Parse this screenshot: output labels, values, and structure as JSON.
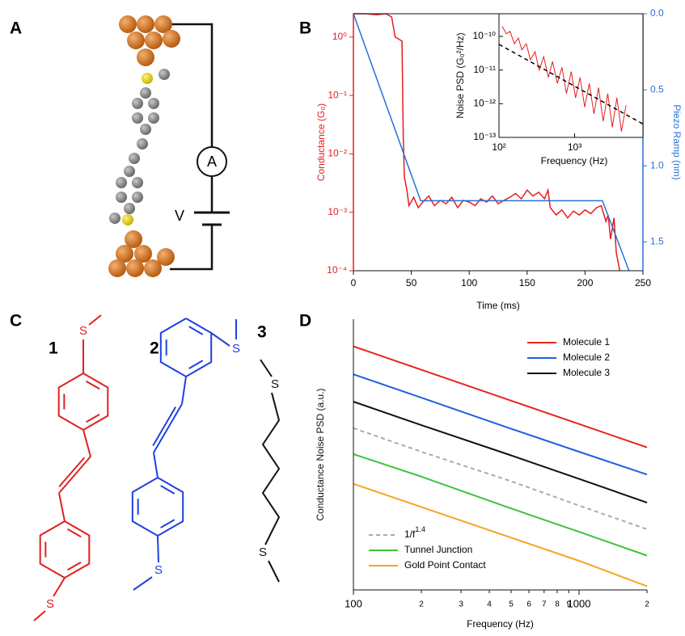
{
  "panel_labels": [
    "A",
    "B",
    "C",
    "D"
  ],
  "panel_a": {
    "ammeter_label": "A",
    "voltage_label": "V"
  },
  "panel_c": {
    "compound_labels": [
      "1",
      "2",
      "3"
    ],
    "sulfur_labels": [
      "S",
      "S",
      "S",
      "S",
      "S",
      "S"
    ]
  },
  "chart_data": [
    {
      "type": "line",
      "xlabel": "Time (ms)",
      "ylabel": "Conductance (G₀)",
      "y2label": "Piezo Ramp (nm)",
      "xlim": [
        0,
        250
      ],
      "xticks": [
        0,
        50,
        100,
        150,
        200,
        250
      ],
      "yscale": "log",
      "ylim": [
        0.0001,
        2.5
      ],
      "yticks": [
        {
          "value": 0.0001,
          "label": "10⁻⁴"
        },
        {
          "value": 0.001,
          "label": "10⁻³"
        },
        {
          "value": 0.01,
          "label": "10⁻²"
        },
        {
          "value": 0.1,
          "label": "10⁻¹"
        },
        {
          "value": 1,
          "label": "10⁰"
        }
      ],
      "y2lim": [
        0,
        1.69
      ],
      "y2_inverted": true,
      "y2ticks": [
        {
          "value": 0,
          "label": "0.0"
        },
        0.5,
        {
          "value": 1,
          "label": "1.0"
        },
        1.5
      ],
      "ycolor": "#e41e1e",
      "y2color": "#2a6fd8",
      "series": [
        {
          "color": "#e41e1e",
          "x": [
            0,
            10,
            20,
            28,
            33,
            36,
            40,
            42,
            43,
            44,
            46,
            48,
            52,
            56,
            60,
            65,
            70,
            75,
            80,
            85,
            90,
            95,
            100,
            105,
            110,
            115,
            120,
            125,
            130,
            135,
            140,
            145,
            150,
            155,
            160,
            165,
            168,
            170,
            175,
            180,
            185,
            190,
            195,
            200,
            205,
            210,
            214,
            218,
            220,
            222,
            225,
            227,
            230
          ],
          "values": [
            2.5,
            2.5,
            2.4,
            2.5,
            2.2,
            1.0,
            0.9,
            0.85,
            0.02,
            0.004,
            0.0025,
            0.0013,
            0.0018,
            0.0012,
            0.0015,
            0.0019,
            0.0013,
            0.0016,
            0.0014,
            0.0018,
            0.0012,
            0.0016,
            0.0015,
            0.0013,
            0.0017,
            0.0015,
            0.0019,
            0.0014,
            0.0016,
            0.0018,
            0.0021,
            0.0017,
            0.0024,
            0.0019,
            0.0022,
            0.0017,
            0.0024,
            0.0012,
            0.0009,
            0.0011,
            0.0008,
            0.00105,
            0.0009,
            0.0011,
            0.00095,
            0.0012,
            0.0013,
            0.0007,
            0.0009,
            0.00035,
            0.0008,
            0.0002,
            0.0001
          ]
        },
        {
          "color": "#2a6fd8",
          "axis": "y2",
          "x": [
            0,
            58,
            215,
            238
          ],
          "values": [
            0,
            1.23,
            1.23,
            1.69
          ]
        }
      ]
    },
    {
      "type": "line",
      "xlabel": "Frequency (Hz)",
      "ylabel": "Noise PSD (G₀²/Hz)",
      "xscale": "log",
      "xlim": [
        100,
        8000
      ],
      "xticks": [
        {
          "value": 100,
          "label": "10²"
        },
        {
          "value": 1000,
          "label": "10³"
        }
      ],
      "yscale": "log",
      "ylim": [
        1e-13,
        4.7e-10
      ],
      "yticks": [
        {
          "value": 1e-13,
          "label": "10⁻¹³"
        },
        {
          "value": 1e-12,
          "label": "10⁻¹²"
        },
        {
          "value": 1e-11,
          "label": "10⁻¹¹"
        },
        {
          "value": 1e-10,
          "label": "10⁻¹⁰"
        }
      ],
      "series": [
        {
          "color": "#e41e1e",
          "x": [
            110,
            125,
            140,
            160,
            180,
            200,
            230,
            260,
            300,
            340,
            390,
            450,
            510,
            590,
            680,
            780,
            900,
            1030,
            1180,
            1360,
            1560,
            1800,
            2070,
            2380,
            2740,
            3150,
            3620,
            4160,
            4780
          ],
          "values": [
            2e-10,
            1.2e-10,
            1.4e-10,
            6e-11,
            9e-11,
            4e-11,
            6e-11,
            2e-11,
            3.5e-11,
            1e-11,
            2.5e-11,
            6e-12,
            1.8e-11,
            4e-12,
            1.2e-11,
            2e-12,
            9e-12,
            1.5e-12,
            6e-12,
            8e-13,
            4e-12,
            5e-13,
            3e-12,
            3e-13,
            2e-12,
            2e-13,
            1.5e-12,
            1.5e-13,
            9e-13
          ]
        },
        {
          "color": "#000000",
          "style": "dashed",
          "x": [
            100,
            8000
          ],
          "values": [
            5.8e-11,
            2.5e-13
          ]
        }
      ]
    },
    {
      "type": "line",
      "xlabel": "Frequency (Hz)",
      "ylabel": "Conductance Noise PSD (a.u.)",
      "xscale": "log",
      "xlim": [
        100,
        2000
      ],
      "xticks": [
        100,
        {
          "value": 200,
          "label": "2"
        },
        {
          "value": 300,
          "label": "3"
        },
        {
          "value": 400,
          "label": "4"
        },
        {
          "value": 500,
          "label": "5"
        },
        {
          "value": 600,
          "label": "6"
        },
        {
          "value": 700,
          "label": "7"
        },
        {
          "value": 800,
          "label": "8"
        },
        {
          "value": 900,
          "label": "9"
        },
        1000,
        {
          "value": 2000,
          "label": "2"
        }
      ],
      "yscale": "log",
      "ylim": [
        1,
        1000
      ],
      "x": [
        100,
        200,
        500,
        1000,
        2000
      ],
      "series": [
        {
          "name": "Molecule 1",
          "color": "#e8231f",
          "legend": "upper right",
          "values": [
            500,
            275,
            125,
            69,
            38
          ]
        },
        {
          "name": "Molecule 2",
          "color": "#1f5fe0",
          "legend": "upper right",
          "values": [
            245,
            135,
            61,
            34,
            19
          ]
        },
        {
          "name": "Molecule 3",
          "color": "#111111",
          "legend": "upper right",
          "values": [
            122,
            67,
            31,
            17,
            9.3
          ]
        },
        {
          "name": "1/f",
          "name_superscript": "1.4",
          "color": "#aaaaaa",
          "style": "dashed",
          "legend": "lower left",
          "values": [
            62,
            34,
            16,
            8.6,
            4.7
          ]
        },
        {
          "name": "Tunnel Junction",
          "color": "#3cc43c",
          "legend": "lower left",
          "values": [
            32,
            18,
            8,
            4.4,
            2.4
          ]
        },
        {
          "name": "Gold Point Contact",
          "color": "#f5a623",
          "legend": "lower left",
          "values": [
            15,
            8.3,
            3.8,
            2.1,
            1.1
          ]
        }
      ]
    }
  ]
}
